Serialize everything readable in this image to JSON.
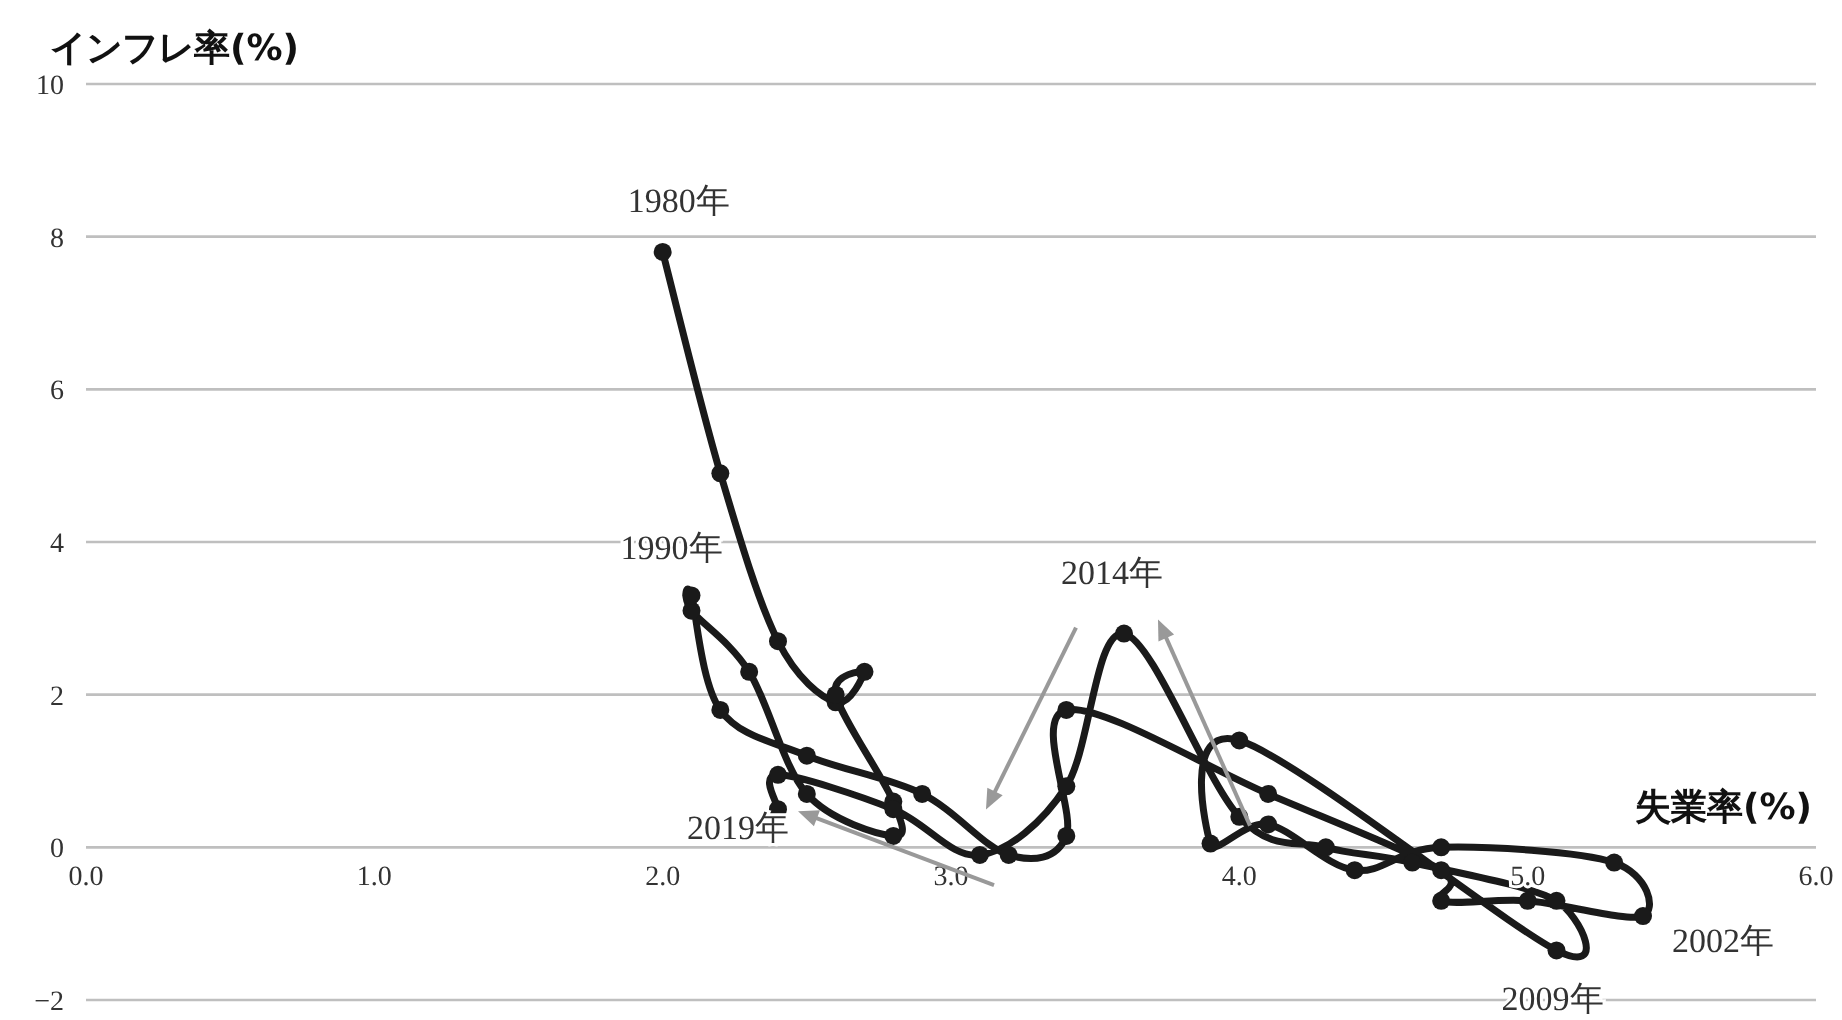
{
  "chart_data": {
    "type": "line",
    "xlabel": "失業率(%)",
    "ylabel": "インフレ率(%)",
    "xlim": [
      0,
      6
    ],
    "ylim": [
      -2,
      10
    ],
    "xticks": [
      {
        "value": 0,
        "label": "0.0"
      },
      {
        "value": 1,
        "label": "1.0"
      },
      {
        "value": 2,
        "label": "2.0"
      },
      {
        "value": 3,
        "label": "3.0"
      },
      {
        "value": 4,
        "label": "4.0"
      },
      {
        "value": 5,
        "label": "5.0"
      },
      {
        "value": 6,
        "label": "6.0"
      }
    ],
    "yticks": [
      -2,
      0,
      2,
      4,
      6,
      8,
      10
    ],
    "grid": "y",
    "marker": "circle",
    "line_style": "solid",
    "series": [
      {
        "color": "#1a1a1a",
        "x": [
          2.0,
          2.2,
          2.4,
          2.6,
          2.7,
          2.6,
          2.8,
          2.8,
          2.5,
          2.3,
          2.1,
          2.1,
          2.2,
          2.5,
          2.9,
          3.2,
          3.4,
          3.4,
          4.1,
          4.7,
          4.7,
          5.0,
          5.4,
          5.3,
          4.7,
          4.4,
          4.1,
          3.9,
          4.0,
          5.1,
          5.1,
          4.6,
          4.3,
          4.0,
          3.6,
          3.4,
          3.1,
          2.8,
          2.4,
          2.4
        ],
        "values": [
          7.8,
          4.9,
          2.7,
          1.9,
          2.3,
          2.0,
          0.6,
          0.15,
          0.7,
          2.3,
          3.1,
          3.3,
          1.8,
          1.2,
          0.7,
          -0.1,
          0.15,
          1.8,
          0.7,
          -0.3,
          -0.7,
          -0.7,
          -0.9,
          -0.2,
          0.0,
          -0.3,
          0.3,
          0.05,
          1.4,
          -1.35,
          -0.7,
          -0.2,
          0.0,
          0.4,
          2.8,
          0.8,
          -0.1,
          0.5,
          0.95,
          0.5
        ]
      }
    ],
    "annotations": [
      {
        "text": "1980年",
        "x": 2.0,
        "y": 7.8
      },
      {
        "text": "1990年",
        "x": 2.1,
        "y": 3.3
      },
      {
        "text": "2002年",
        "x": 5.4,
        "y": -0.9
      },
      {
        "text": "2009年",
        "x": 5.1,
        "y": -1.35
      },
      {
        "text": "2014年",
        "x": 3.6,
        "y": 2.8
      },
      {
        "text": "2019年",
        "x": 2.4,
        "y": 0.5
      }
    ]
  }
}
